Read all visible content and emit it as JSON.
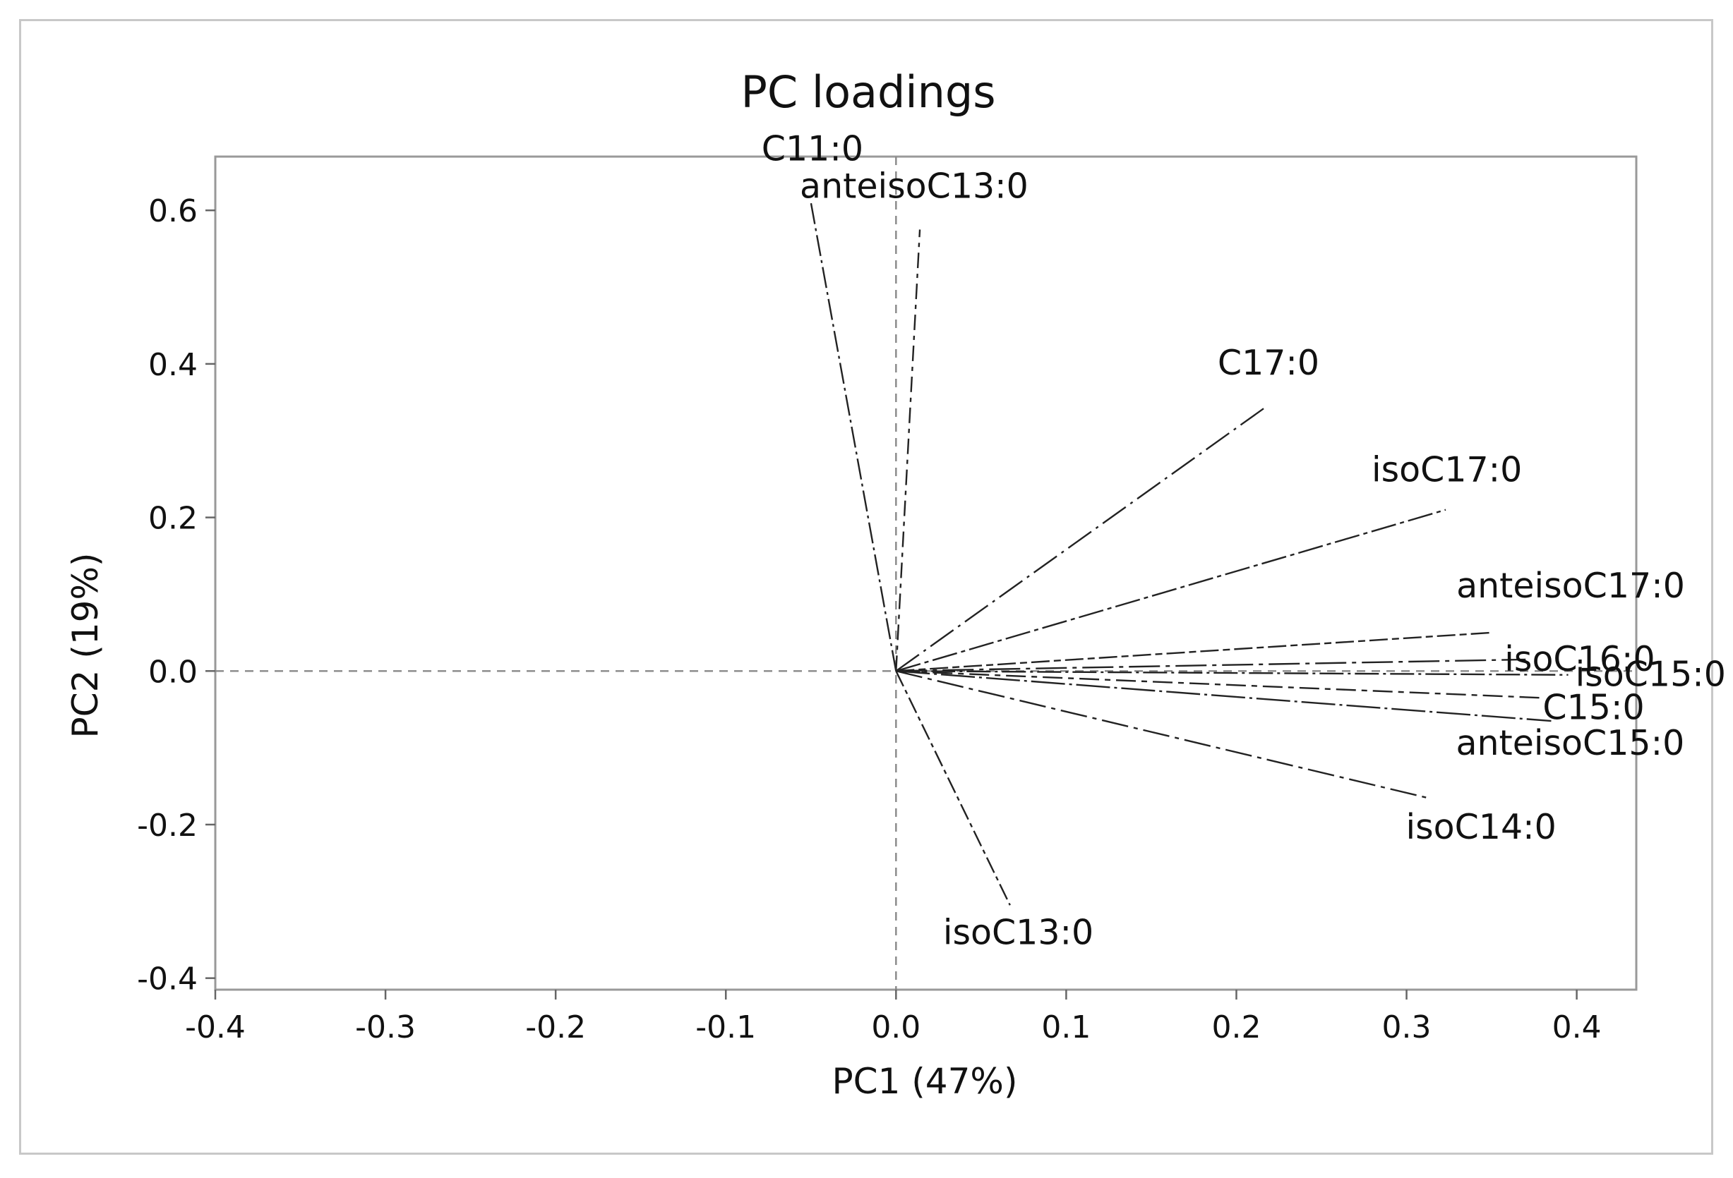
{
  "chart_data": {
    "type": "scatter",
    "subtype": "loading-plot",
    "title": "PC loadings",
    "xlabel": "PC1 (47%)",
    "ylabel": "PC2 (19%)",
    "xlim": [
      -0.4,
      0.435
    ],
    "ylim": [
      -0.415,
      0.67
    ],
    "xticks": [
      -0.4,
      -0.3,
      -0.2,
      -0.1,
      0.0,
      0.1,
      0.2,
      0.3,
      0.4
    ],
    "yticks": [
      -0.4,
      -0.2,
      0.0,
      0.2,
      0.4,
      0.6
    ],
    "xtick_labels": [
      "-0.4",
      "-0.3",
      "-0.2",
      "-0.1",
      "0.0",
      "0.1",
      "0.2",
      "0.3",
      "0.4"
    ],
    "ytick_labels": [
      "-0.4",
      "-0.2",
      "0.0",
      "0.2",
      "0.4",
      "0.6"
    ],
    "reference_lines": {
      "x": 0,
      "y": 0,
      "style": "dashed"
    },
    "vectors": [
      {
        "name": "C11:0",
        "x": -0.05,
        "y": 0.61
      },
      {
        "name": "anteisoC13:0",
        "x": 0.014,
        "y": 0.575
      },
      {
        "name": "C17:0",
        "x": 0.218,
        "y": 0.345
      },
      {
        "name": "isoC17:0",
        "x": 0.323,
        "y": 0.21
      },
      {
        "name": "anteisoC17:0",
        "x": 0.35,
        "y": 0.05
      },
      {
        "name": "isoC16:0",
        "x": 0.37,
        "y": 0.015
      },
      {
        "name": "isoC15:0",
        "x": 0.395,
        "y": -0.005
      },
      {
        "name": "C15:0",
        "x": 0.38,
        "y": -0.035
      },
      {
        "name": "anteisoC15:0",
        "x": 0.385,
        "y": -0.065
      },
      {
        "name": "isoC14:0",
        "x": 0.312,
        "y": -0.165
      },
      {
        "name": "isoC13:0",
        "x": 0.067,
        "y": -0.305
      }
    ]
  }
}
